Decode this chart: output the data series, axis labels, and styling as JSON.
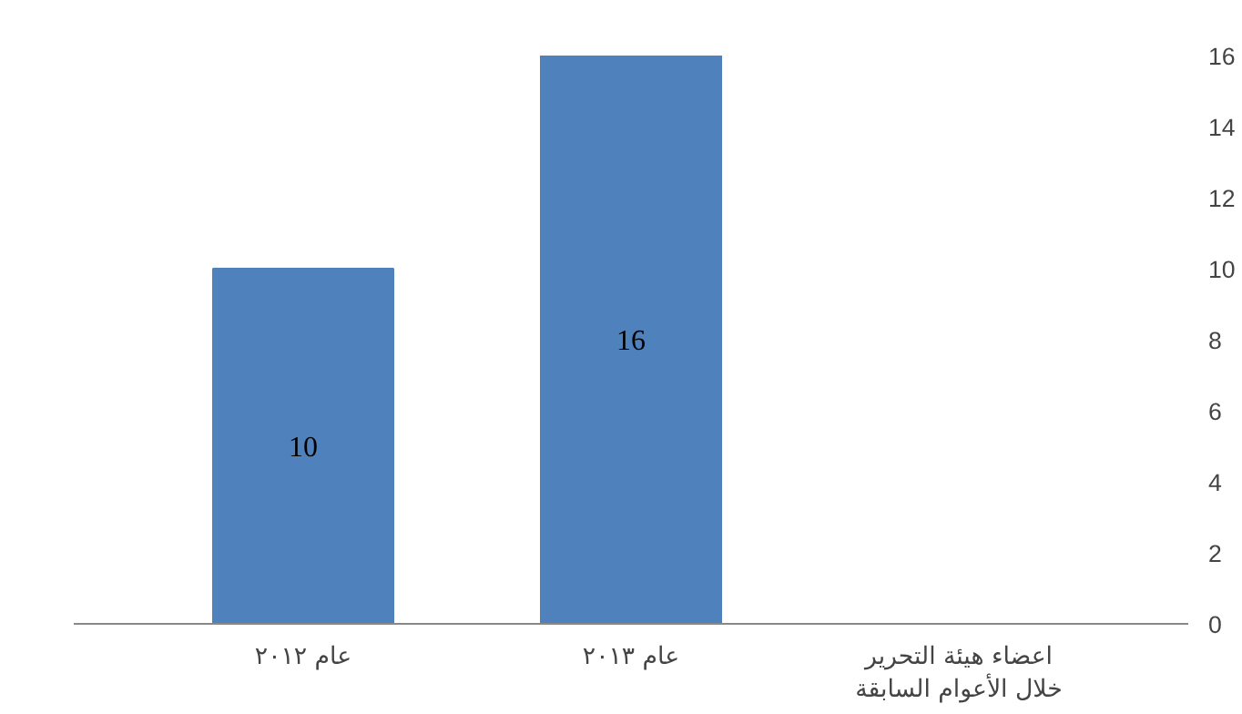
{
  "chart_data": {
    "type": "bar",
    "categories": [
      "عام ٢٠١٢",
      "عام ٢٠١٣",
      "اعضاء هيئة التحرير خلال الأعوام السابقة"
    ],
    "values": [
      10,
      16,
      null
    ],
    "color": "#4f81bd",
    "ylim": [
      0,
      16
    ],
    "yticks": [
      0,
      2,
      4,
      6,
      8,
      10,
      12,
      14,
      16
    ],
    "data_labels": true,
    "grid": false
  }
}
